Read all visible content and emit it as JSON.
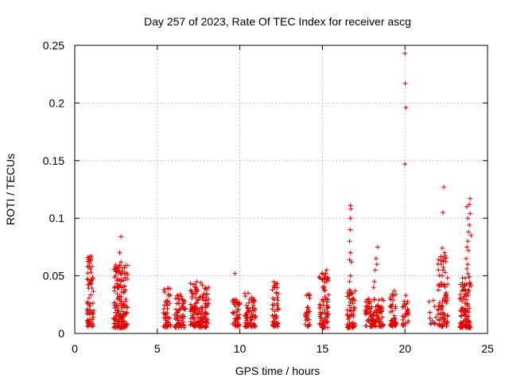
{
  "chart_data": {
    "type": "scatter",
    "title": "Day 257 of 2023, Rate Of TEC Index for receiver ascg",
    "xlabel": "GPS time / hours",
    "ylabel": "ROTI / TECUs",
    "xlim": [
      0,
      25
    ],
    "ylim": [
      0,
      0.25
    ],
    "x_ticks": [
      0,
      5,
      10,
      15,
      20,
      25
    ],
    "y_ticks": [
      0,
      0.05,
      0.1,
      0.15,
      0.2,
      0.25
    ],
    "x_tick_labels": [
      "0",
      "5",
      "10",
      "15",
      "20",
      "25"
    ],
    "y_tick_labels": [
      "0",
      "0.05",
      "0.1",
      "0.15",
      "0.2",
      "0.25"
    ],
    "grid": true,
    "marker": "plus",
    "color": "#e00000",
    "passes": [
      {
        "start": 0.75,
        "end": 1.15,
        "low": 0.006,
        "high": 0.068,
        "n": 70
      },
      {
        "start": 2.35,
        "end": 3.2,
        "low": 0.005,
        "high": 0.06,
        "n": 150
      },
      {
        "start": 5.35,
        "end": 5.8,
        "low": 0.005,
        "high": 0.04,
        "n": 45
      },
      {
        "start": 6.05,
        "end": 6.7,
        "low": 0.005,
        "high": 0.034,
        "n": 70
      },
      {
        "start": 7.0,
        "end": 8.1,
        "low": 0.005,
        "high": 0.045,
        "n": 150
      },
      {
        "start": 9.55,
        "end": 10.0,
        "low": 0.006,
        "high": 0.03,
        "n": 45
      },
      {
        "start": 10.3,
        "end": 11.0,
        "low": 0.006,
        "high": 0.034,
        "n": 70
      },
      {
        "start": 11.95,
        "end": 12.35,
        "low": 0.006,
        "high": 0.045,
        "n": 50
      },
      {
        "start": 13.95,
        "end": 14.25,
        "low": 0.006,
        "high": 0.036,
        "n": 30
      },
      {
        "start": 14.8,
        "end": 15.4,
        "low": 0.005,
        "high": 0.055,
        "n": 80
      },
      {
        "start": 16.5,
        "end": 17.0,
        "low": 0.005,
        "high": 0.04,
        "n": 60
      },
      {
        "start": 17.6,
        "end": 18.7,
        "low": 0.006,
        "high": 0.03,
        "n": 110
      },
      {
        "start": 19.1,
        "end": 19.5,
        "low": 0.006,
        "high": 0.035,
        "n": 45
      },
      {
        "start": 19.85,
        "end": 20.2,
        "low": 0.006,
        "high": 0.03,
        "n": 30
      },
      {
        "start": 21.45,
        "end": 21.9,
        "low": 0.008,
        "high": 0.03,
        "n": 12
      },
      {
        "start": 22.0,
        "end": 22.6,
        "low": 0.006,
        "high": 0.07,
        "n": 80
      },
      {
        "start": 23.3,
        "end": 24.0,
        "low": 0.005,
        "high": 0.05,
        "n": 110
      }
    ],
    "points": [
      [
        0.85,
        0.064
      ],
      [
        1.0,
        0.067
      ],
      [
        0.9,
        0.058
      ],
      [
        1.05,
        0.058
      ],
      [
        2.8,
        0.084
      ],
      [
        2.72,
        0.07
      ],
      [
        2.8,
        0.062
      ],
      [
        2.9,
        0.054
      ],
      [
        3.0,
        0.052
      ],
      [
        2.65,
        0.058
      ],
      [
        9.7,
        0.052
      ],
      [
        10.3,
        0.035
      ],
      [
        10.5,
        0.035
      ],
      [
        15.1,
        0.048
      ],
      [
        15.2,
        0.052
      ],
      [
        15.25,
        0.055
      ],
      [
        16.7,
        0.111
      ],
      [
        16.72,
        0.108
      ],
      [
        16.7,
        0.1
      ],
      [
        16.68,
        0.09
      ],
      [
        16.65,
        0.08
      ],
      [
        16.7,
        0.07
      ],
      [
        16.65,
        0.064
      ],
      [
        16.75,
        0.062
      ],
      [
        16.7,
        0.05
      ],
      [
        16.65,
        0.045
      ],
      [
        18.35,
        0.075
      ],
      [
        18.25,
        0.065
      ],
      [
        18.3,
        0.06
      ],
      [
        18.2,
        0.055
      ],
      [
        18.15,
        0.045
      ],
      [
        18.1,
        0.04
      ],
      [
        19.35,
        0.037
      ],
      [
        19.45,
        0.034
      ],
      [
        20.0,
        0.243
      ],
      [
        20.02,
        0.217
      ],
      [
        20.05,
        0.196
      ],
      [
        20.0,
        0.147
      ],
      [
        20.05,
        0.033
      ],
      [
        19.95,
        0.028
      ],
      [
        22.35,
        0.127
      ],
      [
        22.3,
        0.105
      ],
      [
        22.25,
        0.074
      ],
      [
        22.4,
        0.07
      ],
      [
        22.35,
        0.065
      ],
      [
        22.2,
        0.06
      ],
      [
        22.3,
        0.055
      ],
      [
        22.25,
        0.05
      ],
      [
        23.95,
        0.117
      ],
      [
        23.9,
        0.112
      ],
      [
        23.75,
        0.11
      ],
      [
        23.95,
        0.104
      ],
      [
        23.8,
        0.1
      ],
      [
        23.9,
        0.094
      ],
      [
        23.85,
        0.088
      ],
      [
        24.0,
        0.085
      ],
      [
        23.8,
        0.08
      ],
      [
        23.75,
        0.075
      ],
      [
        23.85,
        0.072
      ],
      [
        23.7,
        0.065
      ],
      [
        23.8,
        0.06
      ],
      [
        23.75,
        0.056
      ],
      [
        23.8,
        0.052
      ]
    ]
  }
}
